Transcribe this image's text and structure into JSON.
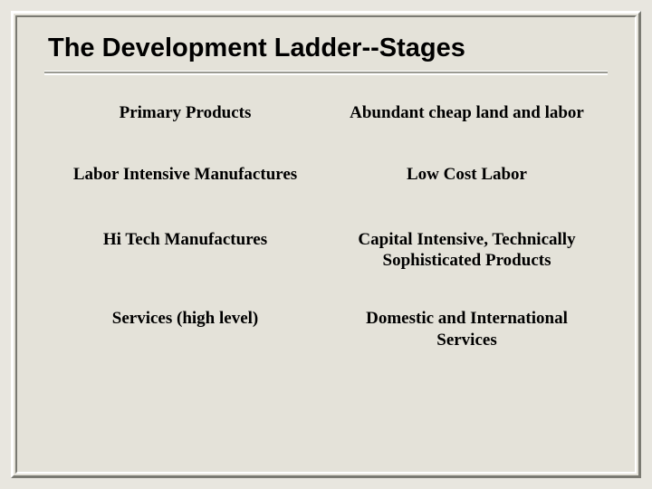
{
  "slide": {
    "title": "The Development Ladder--Stages",
    "background_color": "#e4e2d9",
    "frame_light": "#ffffff",
    "frame_dark": "#7a7a72",
    "rule_color": "#9a9a92",
    "title_font": "Arial",
    "title_fontsize": 29,
    "title_weight": "bold",
    "body_font": "Georgia",
    "body_fontsize": 19,
    "body_weight": "bold",
    "text_color": "#000000",
    "rows": [
      {
        "left": "Primary Products",
        "right": "Abundant cheap land and labor"
      },
      {
        "left": "Labor Intensive Manufactures",
        "right": "Low Cost Labor"
      },
      {
        "left": "Hi Tech Manufactures",
        "right": "Capital Intensive, Technically Sophisticated Products"
      },
      {
        "left": "Services  (high level)",
        "right": "Domestic and International Services"
      }
    ]
  }
}
